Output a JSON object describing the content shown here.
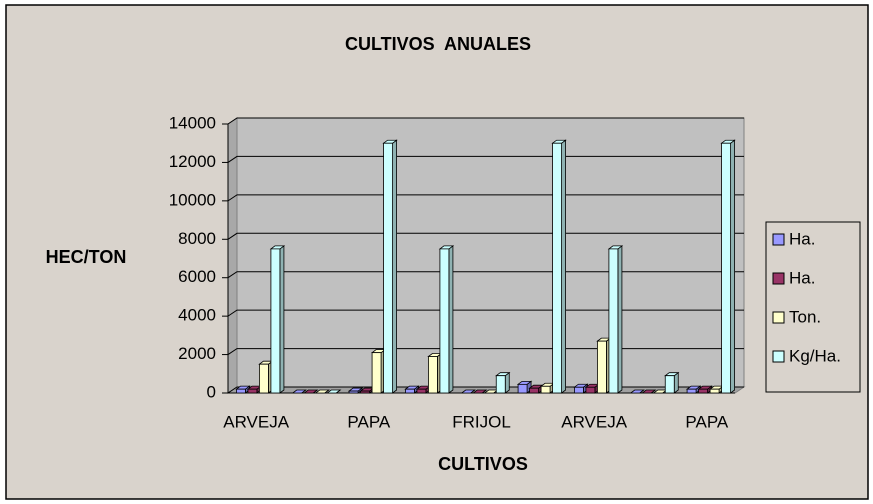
{
  "chart_data": {
    "type": "bar",
    "title": "CULTIVOS  ANUALES",
    "x_label": "CULTIVOS",
    "y_label": "HEC/TON",
    "categories": [
      "ARVEJA",
      null,
      "PAPA",
      null,
      "FRIJOL",
      null,
      "ARVEJA",
      null,
      "PAPA"
    ],
    "series": [
      {
        "name": "Ha.",
        "color": "#9999ff",
        "values": [
          200,
          0,
          100,
          200,
          0,
          450,
          300,
          0,
          200
        ]
      },
      {
        "name": "Ha.",
        "color": "#993366",
        "values": [
          200,
          0,
          100,
          200,
          0,
          250,
          300,
          0,
          200
        ]
      },
      {
        "name": "Ton.",
        "color": "#ffffcc",
        "values": [
          1500,
          0,
          2100,
          1900,
          0,
          350,
          2700,
          0,
          200
        ]
      },
      {
        "name": "Kg/Ha.",
        "color": "#ccffff",
        "values": [
          7500,
          0,
          13000,
          7500,
          900,
          13000,
          7500,
          900,
          13000
        ]
      }
    ],
    "ylim": [
      0,
      14000
    ],
    "yticks": [
      0,
      2000,
      4000,
      6000,
      8000,
      10000,
      12000,
      14000
    ],
    "grid": true,
    "legend": "right"
  }
}
